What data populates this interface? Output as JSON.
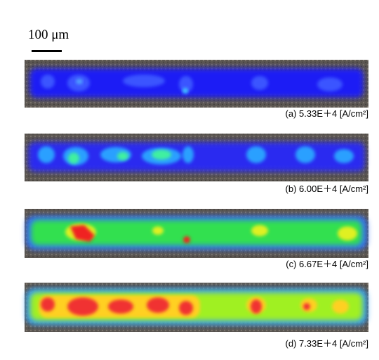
{
  "scale_bar": {
    "label": "100 μm"
  },
  "panels": [
    {
      "caption": "(a) 5.33E＋4 [A/cm²]"
    },
    {
      "caption": "(b) 6.00E＋4 [A/cm²]"
    },
    {
      "caption": "(c) 6.67E＋4 [A/cm²]"
    },
    {
      "caption": "(d) 7.33E＋4 [A/cm²]"
    }
  ]
}
